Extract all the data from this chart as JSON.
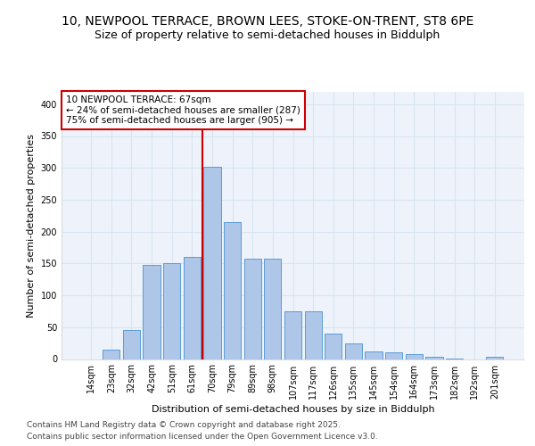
{
  "title_line1": "10, NEWPOOL TERRACE, BROWN LEES, STOKE-ON-TRENT, ST8 6PE",
  "title_line2": "Size of property relative to semi-detached houses in Biddulph",
  "xlabel": "Distribution of semi-detached houses by size in Biddulph",
  "ylabel": "Number of semi-detached properties",
  "categories": [
    "14sqm",
    "23sqm",
    "32sqm",
    "42sqm",
    "51sqm",
    "61sqm",
    "70sqm",
    "79sqm",
    "89sqm",
    "98sqm",
    "107sqm",
    "117sqm",
    "126sqm",
    "135sqm",
    "145sqm",
    "154sqm",
    "164sqm",
    "173sqm",
    "182sqm",
    "192sqm",
    "201sqm"
  ],
  "values": [
    0,
    15,
    46,
    148,
    150,
    160,
    302,
    215,
    158,
    157,
    75,
    75,
    40,
    25,
    12,
    10,
    8,
    4,
    1,
    0,
    4
  ],
  "bar_color": "#aec6e8",
  "bar_edge_color": "#5b9bd5",
  "red_line_x": 6.0,
  "annotation_title": "10 NEWPOOL TERRACE: 67sqm",
  "annotation_line2": "← 24% of semi-detached houses are smaller (287)",
  "annotation_line3": "75% of semi-detached houses are larger (905) →",
  "annotation_box_color": "#ffffff",
  "annotation_box_edge": "#cc0000",
  "red_line_color": "#cc0000",
  "ylim": [
    0,
    420
  ],
  "yticks": [
    0,
    50,
    100,
    150,
    200,
    250,
    300,
    350,
    400
  ],
  "background_color": "#eef3fb",
  "grid_color": "#d8e4f0",
  "footer_line1": "Contains HM Land Registry data © Crown copyright and database right 2025.",
  "footer_line2": "Contains public sector information licensed under the Open Government Licence v3.0.",
  "title_fontsize": 10,
  "subtitle_fontsize": 9,
  "axis_label_fontsize": 8,
  "tick_fontsize": 7,
  "footer_fontsize": 6.5
}
